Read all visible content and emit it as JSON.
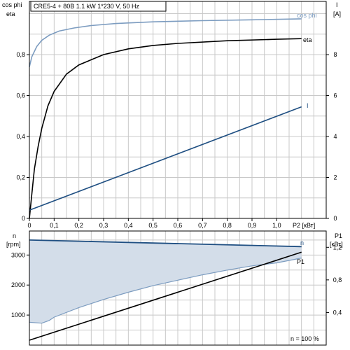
{
  "chart_data": [
    {
      "type": "line",
      "title": "CRE5-4 + 80B   1.1 kW   1*230 V, 50 Hz",
      "xlabel": "P2 [кВт]",
      "xlim": [
        0,
        1.2
      ],
      "x_ticks": [
        "0",
        "0,1",
        "0,2",
        "0,3",
        "0,4",
        "0,5",
        "0,6",
        "0,7",
        "0,8",
        "0,9",
        "1,0"
      ],
      "y_left_labels": [
        "cos phi",
        "eta"
      ],
      "y_left_lim": [
        0,
        1.06
      ],
      "y_left_ticks": [
        "0",
        "0,2",
        "0,4",
        "0,6",
        "0,8"
      ],
      "y_right_labels": [
        "I",
        "[A]"
      ],
      "y_right_lim": [
        0,
        10.6
      ],
      "y_right_ticks": [
        "0",
        "2",
        "4",
        "6",
        "8"
      ],
      "grid": true,
      "series": [
        {
          "name": "cos phi",
          "axis": "left",
          "color": "#7c9cc0",
          "x": [
            0.0,
            0.01,
            0.03,
            0.05,
            0.08,
            0.12,
            0.18,
            0.25,
            0.35,
            0.5,
            0.7,
            0.9,
            1.1
          ],
          "y": [
            0.74,
            0.79,
            0.84,
            0.87,
            0.895,
            0.915,
            0.93,
            0.942,
            0.952,
            0.96,
            0.966,
            0.97,
            0.975
          ]
        },
        {
          "name": "eta",
          "axis": "left",
          "color": "#000000",
          "x": [
            0.0,
            0.01,
            0.02,
            0.035,
            0.05,
            0.075,
            0.1,
            0.15,
            0.2,
            0.3,
            0.4,
            0.5,
            0.6,
            0.8,
            1.0,
            1.1
          ],
          "y": [
            0.0,
            0.12,
            0.24,
            0.35,
            0.44,
            0.55,
            0.62,
            0.705,
            0.75,
            0.8,
            0.828,
            0.845,
            0.855,
            0.868,
            0.875,
            0.878
          ]
        },
        {
          "name": "I",
          "axis": "right",
          "color": "#1f4f82",
          "x": [
            0.0,
            1.1
          ],
          "y": [
            0.4,
            5.45
          ]
        }
      ]
    },
    {
      "type": "line",
      "xlim": [
        0,
        1.2
      ],
      "y_left_labels": [
        "n",
        "[rpm]"
      ],
      "y_left_lim": [
        0,
        3800
      ],
      "y_left_ticks": [
        "1000",
        "2000",
        "3000"
      ],
      "y_right_labels": [
        "P1",
        "[кВт]"
      ],
      "y_right_lim": [
        0,
        1.4
      ],
      "y_right_ticks": [
        "0,4",
        "0,8",
        "1,2"
      ],
      "annotation": "n = 100 %",
      "grid": true,
      "series": [
        {
          "name": "n",
          "axis": "left",
          "color": "#1f4f82",
          "x": [
            0.0,
            1.1
          ],
          "y": [
            3500,
            3280
          ]
        },
        {
          "name": "P1",
          "axis": "right",
          "color": "#000000",
          "x": [
            0.0,
            1.1
          ],
          "y": [
            0.06,
            1.14
          ]
        },
        {
          "name": "",
          "axis": "left",
          "color": "#7c9cc0",
          "shaded_to": "n",
          "x": [
            0.0,
            0.05,
            0.08,
            0.1,
            0.2,
            0.3,
            0.4,
            0.5,
            0.6,
            0.7,
            0.8,
            0.9,
            1.0,
            1.1
          ],
          "y": [
            760,
            730,
            820,
            930,
            1250,
            1520,
            1760,
            1980,
            2160,
            2340,
            2500,
            2640,
            2740,
            2900
          ]
        }
      ]
    }
  ]
}
